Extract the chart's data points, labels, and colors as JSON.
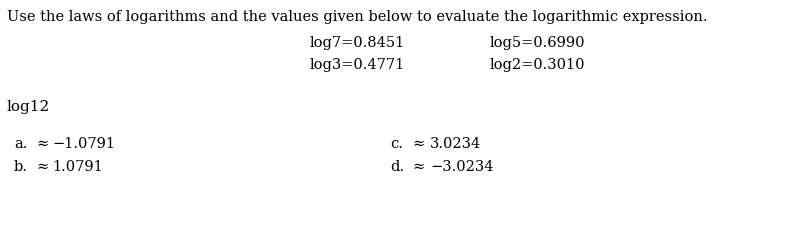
{
  "bg_color": "#ffffff",
  "instruction": "Use the laws of logarithms and the values given below to evaluate the logarithmic expression.",
  "given_values": [
    [
      "log7=0.8451",
      "log5=0.6990"
    ],
    [
      "log3=0.4771",
      "log2=0.3010"
    ]
  ],
  "question": "log12",
  "choices": [
    {
      "label": "a.",
      "approx": "≈",
      "value": "−1.0791"
    },
    {
      "label": "b.",
      "approx": "≈",
      "value": "1.0791"
    },
    {
      "label": "c.",
      "approx": "≈",
      "value": "3.0234"
    },
    {
      "label": "d.",
      "approx": "≈",
      "value": "−3.0234"
    }
  ]
}
